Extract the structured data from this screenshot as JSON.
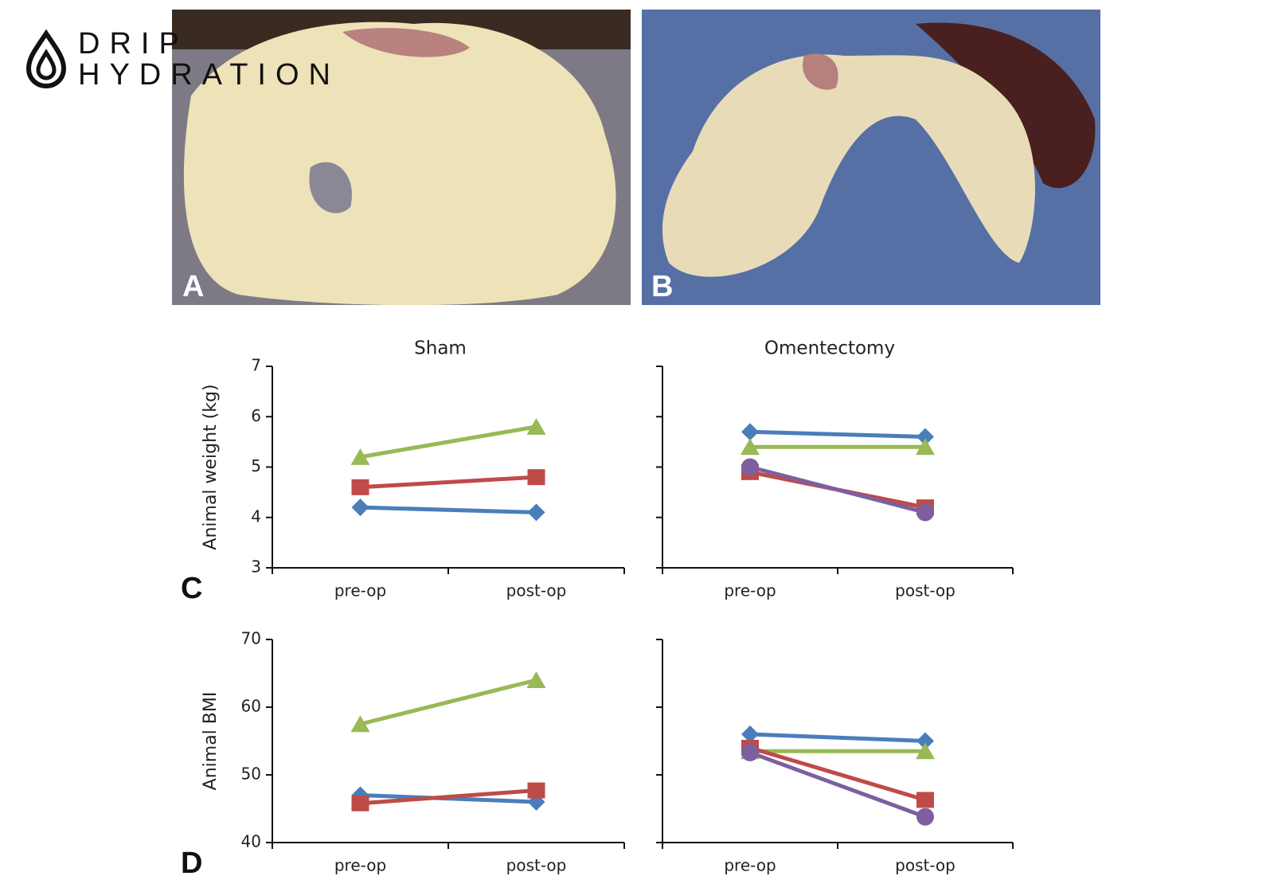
{
  "logo": {
    "line1": "DRIP",
    "line2": "HYDRATION"
  },
  "photos": [
    {
      "label": "A"
    },
    {
      "label": "B"
    }
  ],
  "chart_data": [
    {
      "type": "line",
      "title": "Sham",
      "ylabel": "Animal weight (kg)",
      "panel_label": "C",
      "categories": [
        "pre-op",
        "post-op"
      ],
      "ylim": [
        3,
        7
      ],
      "yticks": [
        3,
        4,
        5,
        6,
        7
      ],
      "ytick_labels": true,
      "series": [
        {
          "color": "#4a7ebb",
          "marker": "diamond",
          "values": [
            4.2,
            4.1
          ]
        },
        {
          "color": "#be4b48",
          "marker": "square",
          "values": [
            4.6,
            4.8
          ]
        },
        {
          "color": "#98b954",
          "marker": "triangle",
          "values": [
            5.2,
            5.8
          ]
        }
      ]
    },
    {
      "type": "line",
      "title": "Omentectomy",
      "categories": [
        "pre-op",
        "post-op"
      ],
      "ylim": [
        3,
        7
      ],
      "yticks": [
        3,
        4,
        5,
        6,
        7
      ],
      "ytick_labels": false,
      "series": [
        {
          "color": "#4a7ebb",
          "marker": "diamond",
          "values": [
            5.7,
            5.6
          ]
        },
        {
          "color": "#98b954",
          "marker": "triangle",
          "values": [
            5.4,
            5.4
          ]
        },
        {
          "color": "#be4b48",
          "marker": "square",
          "values": [
            4.9,
            4.2
          ]
        },
        {
          "color": "#7d5fa0",
          "marker": "circle",
          "values": [
            5.0,
            4.1
          ]
        }
      ]
    },
    {
      "type": "line",
      "ylabel": "Animal BMI",
      "panel_label": "D",
      "categories": [
        "pre-op",
        "post-op"
      ],
      "ylim": [
        40,
        70
      ],
      "yticks": [
        40,
        50,
        60,
        70
      ],
      "ytick_labels": true,
      "series": [
        {
          "color": "#4a7ebb",
          "marker": "diamond",
          "values": [
            47,
            46
          ]
        },
        {
          "color": "#be4b48",
          "marker": "square",
          "values": [
            45.8,
            47.7
          ]
        },
        {
          "color": "#98b954",
          "marker": "triangle",
          "values": [
            57.5,
            64
          ]
        }
      ]
    },
    {
      "type": "line",
      "categories": [
        "pre-op",
        "post-op"
      ],
      "ylim": [
        40,
        70
      ],
      "yticks": [
        40,
        50,
        60,
        70
      ],
      "ytick_labels": false,
      "series": [
        {
          "color": "#4a7ebb",
          "marker": "diamond",
          "values": [
            56,
            55
          ]
        },
        {
          "color": "#98b954",
          "marker": "triangle",
          "values": [
            53.5,
            53.5
          ]
        },
        {
          "color": "#be4b48",
          "marker": "square",
          "values": [
            54,
            46.3
          ]
        },
        {
          "color": "#7d5fa0",
          "marker": "circle",
          "values": [
            53.3,
            43.8
          ]
        }
      ]
    }
  ]
}
